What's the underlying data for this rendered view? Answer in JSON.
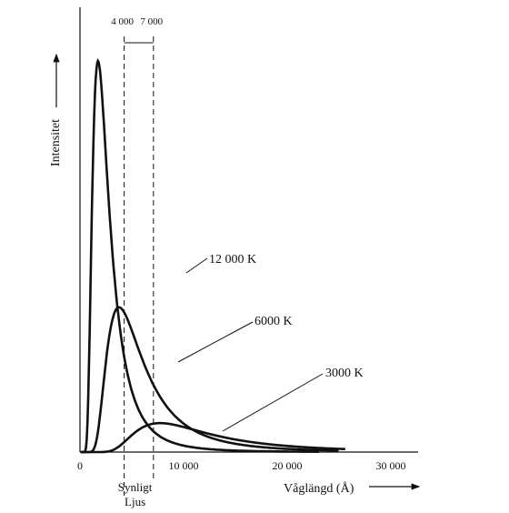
{
  "chart_data": {
    "type": "line",
    "xlabel": "Våglängd (Å)",
    "ylabel": "Intensitet",
    "xlim": [
      0,
      32000
    ],
    "ylim": [
      0,
      1
    ],
    "x_ticks": [
      {
        "value": 0,
        "label": "0"
      },
      {
        "value": 10000,
        "label": "10 000"
      },
      {
        "value": 20000,
        "label": "20 000"
      },
      {
        "value": 30000,
        "label": "30 000"
      }
    ],
    "visible_band": {
      "start": 4000,
      "end": 7000,
      "start_label": "4 000",
      "end_label": "7 000",
      "label_line1": "Synligt",
      "label_line2": "Ljus"
    },
    "series": [
      {
        "name": "12 000 K",
        "temperature": 12000
      },
      {
        "name": "6000 K",
        "temperature": 6000
      },
      {
        "name": "3000 K",
        "temperature": 3000
      }
    ],
    "grid": false,
    "legend": "inline-annotations"
  }
}
